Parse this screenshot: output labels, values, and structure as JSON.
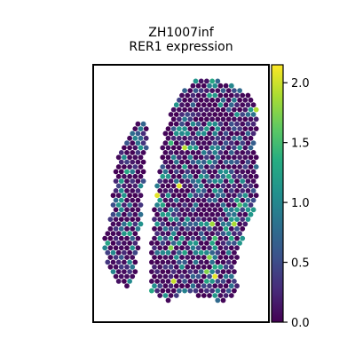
{
  "chart_data": {
    "type": "scatter",
    "title_lines": [
      "ZH1007inf",
      "RER1 expression"
    ],
    "xlabel": "",
    "ylabel": "",
    "x_ticks_shown": false,
    "y_ticks_shown": false,
    "grid": false,
    "colormap": "viridis",
    "colorbar": {
      "min": 0.0,
      "max": 2.15,
      "ticks": [
        0.0,
        0.5,
        1.0,
        1.5,
        2.0
      ],
      "tick_labels": [
        "0.0",
        "0.5",
        "1.0",
        "1.5",
        "2.0"
      ]
    },
    "spots": {
      "description_shape": "tissue section with two lobes separated by a thin gap",
      "value_distribution": {
        "zero_fraction": 0.42,
        "typical_max": 1.3,
        "outlier_max": 2.1
      },
      "highlighted_values": [
        2.1,
        2.0,
        1.9,
        1.8,
        1.7
      ]
    }
  },
  "colors": {
    "frame": "#000000",
    "background": "#ffffff"
  }
}
